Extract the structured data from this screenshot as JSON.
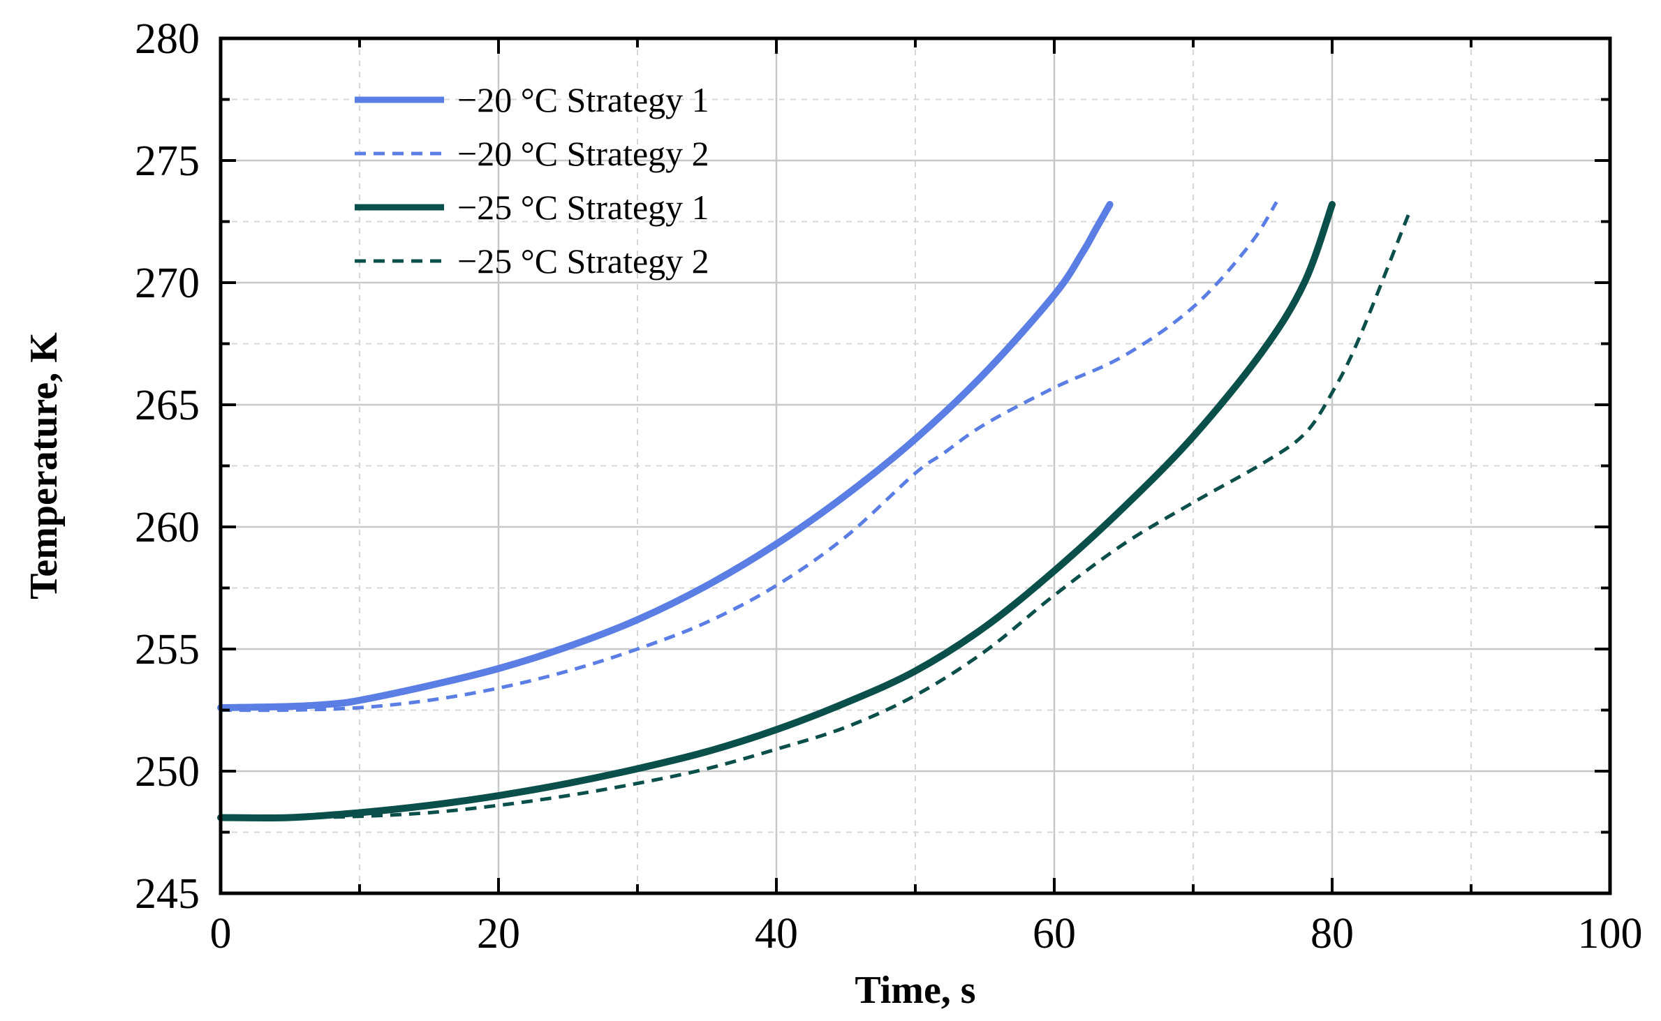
{
  "chart_data": {
    "type": "line",
    "title": "",
    "xlabel": "Time, s",
    "ylabel": "Temperature, K",
    "xlim": [
      0,
      100
    ],
    "ylim": [
      245,
      280
    ],
    "xticks": [
      0,
      20,
      40,
      60,
      80,
      100
    ],
    "yticks": [
      245,
      250,
      255,
      260,
      265,
      270,
      275,
      280
    ],
    "grid": true,
    "legend_position": "top-left",
    "series": [
      {
        "name": "−20 °C Strategy 1",
        "color": "#5b7ee5",
        "style": "solid",
        "x": [
          0,
          5,
          8,
          10,
          15,
          20,
          25,
          30,
          35,
          40,
          45,
          50,
          55,
          60,
          62,
          63,
          64
        ],
        "y": [
          252.6,
          252.65,
          252.75,
          252.9,
          253.5,
          254.2,
          255.1,
          256.2,
          257.6,
          259.3,
          261.3,
          263.6,
          266.3,
          269.5,
          271.2,
          272.2,
          273.2
        ]
      },
      {
        "name": "−20 °C Strategy 2",
        "color": "#5b7ee5",
        "style": "dashed",
        "x": [
          0,
          5,
          10,
          15,
          20,
          25,
          30,
          35,
          40,
          45,
          50,
          52,
          55,
          60,
          65,
          70,
          74,
          76
        ],
        "y": [
          252.5,
          252.5,
          252.6,
          252.9,
          253.4,
          254.1,
          255.0,
          256.1,
          257.6,
          259.6,
          262.2,
          263.0,
          264.2,
          265.7,
          267.0,
          269.0,
          271.5,
          273.3
        ]
      },
      {
        "name": "−25 °C Strategy 1",
        "color": "#0b4f4b",
        "style": "solid",
        "x": [
          0,
          5,
          10,
          15,
          20,
          25,
          30,
          35,
          40,
          45,
          50,
          55,
          60,
          65,
          70,
          75,
          78,
          80
        ],
        "y": [
          248.1,
          248.1,
          248.3,
          248.6,
          249.0,
          249.5,
          250.1,
          250.8,
          251.7,
          252.8,
          254.1,
          255.9,
          258.2,
          260.8,
          263.7,
          267.2,
          270.0,
          273.2
        ]
      },
      {
        "name": "−25 °C Strategy 2",
        "color": "#0b4f4b",
        "style": "dashed",
        "x": [
          0,
          5,
          10,
          15,
          20,
          25,
          30,
          35,
          40,
          45,
          50,
          55,
          60,
          65,
          70,
          75,
          78,
          80,
          82,
          85.5
        ],
        "y": [
          248.1,
          248.1,
          248.15,
          248.3,
          248.6,
          249.0,
          249.5,
          250.1,
          250.9,
          251.8,
          253.1,
          254.9,
          257.2,
          259.3,
          261.0,
          262.6,
          263.8,
          265.5,
          267.8,
          272.8
        ]
      }
    ]
  }
}
